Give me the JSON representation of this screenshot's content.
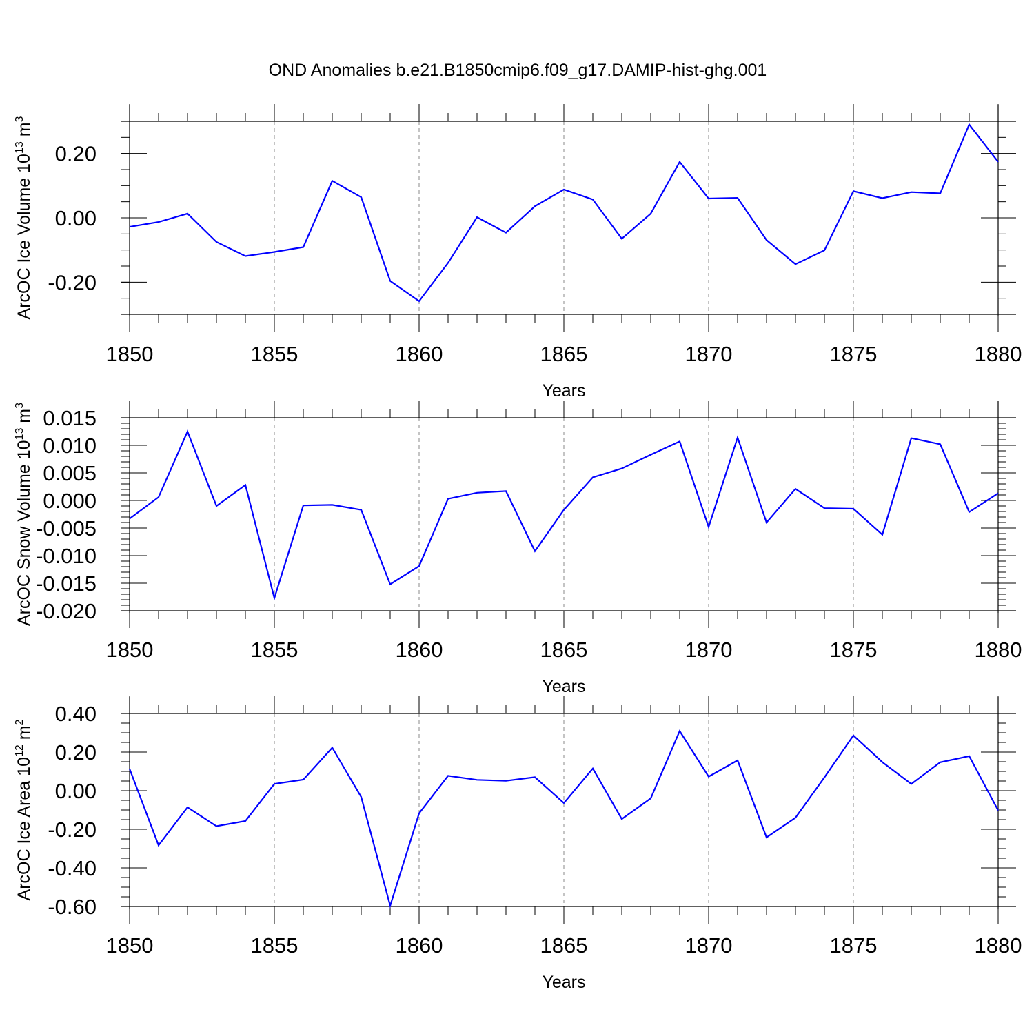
{
  "title": "OND Anomalies b.e21.B1850cmip6.f09_g17.DAMIP-hist-ghg.001",
  "line_color": "#0000ff",
  "chart_data": [
    {
      "type": "line",
      "ylabel_main": "ArcOC Ice Volume 10",
      "ylabel_exp": "13",
      "ylabel_unit": " m",
      "ylabel_unit_exp": "3",
      "xlabel": "Years",
      "xlim": [
        1850,
        1880
      ],
      "ylim": [
        -0.3,
        0.3
      ],
      "y_ticks": [
        -0.2,
        0.0,
        0.2
      ],
      "y_tick_labels": [
        "-0.20",
        "0.00",
        "0.20"
      ],
      "y_minor_step": 0.05,
      "x_ticks": [
        1850,
        1855,
        1860,
        1865,
        1870,
        1875,
        1880
      ],
      "x_tick_labels": [
        "1850",
        "1855",
        "1860",
        "1865",
        "1870",
        "1875",
        "1880"
      ],
      "x": [
        1850,
        1851,
        1852,
        1853,
        1854,
        1855,
        1856,
        1857,
        1858,
        1859,
        1860,
        1861,
        1862,
        1863,
        1864,
        1865,
        1866,
        1867,
        1868,
        1869,
        1870,
        1871,
        1872,
        1873,
        1874,
        1875,
        1876,
        1877,
        1878,
        1879,
        1880
      ],
      "y": [
        -0.028,
        -0.013,
        0.013,
        -0.075,
        -0.119,
        -0.106,
        -0.091,
        0.115,
        0.064,
        -0.196,
        -0.259,
        -0.14,
        0.002,
        -0.046,
        0.036,
        0.088,
        0.057,
        -0.065,
        0.013,
        0.174,
        0.06,
        0.062,
        -0.069,
        -0.144,
        -0.101,
        0.083,
        0.061,
        0.08,
        0.076,
        0.29,
        0.174
      ]
    },
    {
      "type": "line",
      "ylabel_main": "ArcOC Snow Volume 10",
      "ylabel_exp": "13",
      "ylabel_unit": " m",
      "ylabel_unit_exp": "3",
      "xlabel": "Years",
      "xlim": [
        1850,
        1880
      ],
      "ylim": [
        -0.02,
        0.015
      ],
      "y_ticks": [
        -0.02,
        -0.015,
        -0.01,
        -0.005,
        0.0,
        0.005,
        0.01,
        0.015
      ],
      "y_tick_labels": [
        "-0.020",
        "-0.015",
        "-0.010",
        "-0.005",
        "0.000",
        "0.005",
        "0.010",
        "0.015"
      ],
      "y_minor_step": 0.001,
      "x_ticks": [
        1850,
        1855,
        1860,
        1865,
        1870,
        1875,
        1880
      ],
      "x_tick_labels": [
        "1850",
        "1855",
        "1860",
        "1865",
        "1870",
        "1875",
        "1880"
      ],
      "x": [
        1850,
        1851,
        1852,
        1853,
        1854,
        1855,
        1856,
        1857,
        1858,
        1859,
        1860,
        1861,
        1862,
        1863,
        1864,
        1865,
        1866,
        1867,
        1868,
        1869,
        1870,
        1871,
        1872,
        1873,
        1874,
        1875,
        1876,
        1877,
        1878,
        1879,
        1880
      ],
      "y": [
        -0.0033,
        0.0006,
        0.0125,
        -0.001,
        0.0028,
        -0.0177,
        -0.0009,
        -0.0008,
        -0.0017,
        -0.0152,
        -0.0119,
        0.0003,
        0.0014,
        0.0017,
        -0.0092,
        -0.0017,
        0.0042,
        0.0058,
        0.0083,
        0.0107,
        -0.0048,
        0.0114,
        -0.004,
        0.0021,
        -0.0014,
        -0.0015,
        -0.0062,
        0.0113,
        0.0102,
        -0.0021,
        0.0013
      ]
    },
    {
      "type": "line",
      "ylabel_main": "ArcOC Ice Area 10",
      "ylabel_exp": "12",
      "ylabel_unit": " m",
      "ylabel_unit_exp": "2",
      "xlabel": "Years",
      "xlim": [
        1850,
        1880
      ],
      "ylim": [
        -0.6,
        0.4
      ],
      "y_ticks": [
        -0.6,
        -0.4,
        -0.2,
        0.0,
        0.2,
        0.4
      ],
      "y_tick_labels": [
        "-0.60",
        "-0.40",
        "-0.20",
        "0.00",
        "0.20",
        "0.40"
      ],
      "y_minor_step": 0.05,
      "x_ticks": [
        1850,
        1855,
        1860,
        1865,
        1870,
        1875,
        1880
      ],
      "x_tick_labels": [
        "1850",
        "1855",
        "1860",
        "1865",
        "1870",
        "1875",
        "1880"
      ],
      "x": [
        1850,
        1851,
        1852,
        1853,
        1854,
        1855,
        1856,
        1857,
        1858,
        1859,
        1860,
        1861,
        1862,
        1863,
        1864,
        1865,
        1866,
        1867,
        1868,
        1869,
        1870,
        1871,
        1872,
        1873,
        1874,
        1875,
        1876,
        1877,
        1878,
        1879,
        1880
      ],
      "y": [
        0.113,
        -0.283,
        -0.086,
        -0.184,
        -0.157,
        0.035,
        0.057,
        0.223,
        -0.033,
        -0.596,
        -0.117,
        0.077,
        0.056,
        0.051,
        0.07,
        -0.064,
        0.115,
        -0.147,
        -0.04,
        0.309,
        0.073,
        0.157,
        -0.242,
        -0.14,
        0.069,
        0.286,
        0.148,
        0.035,
        0.147,
        0.179,
        -0.102
      ]
    }
  ]
}
